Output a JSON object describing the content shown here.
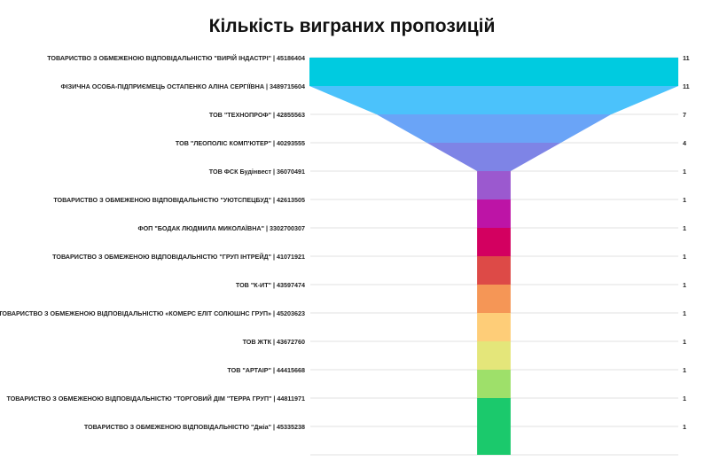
{
  "chart_data": {
    "type": "funnel",
    "title": "Кількість виграних пропозицій",
    "categories": [
      "ТОВАРИСТВО З ОБМЕЖЕНОЮ ВІДПОВІДАЛЬНІСТЮ \"ВИРІЙ ІНДАСТРІ\" | 45186404",
      "ФІЗИЧНА ОСОБА-ПІДПРИЄМЕЦЬ ОСТАПЕНКО АЛІНА СЕРГІЇВНА | 3489715604",
      "ТОВ \"ТЕХНОПРОФ\" | 42855563",
      "ТОВ \"ЛЕОПОЛІС КОМП'ЮТЕР\" | 40293555",
      "ТОВ ФСК Будінвест | 36070491",
      "ТОВАРИСТВО З ОБМЕЖЕНОЮ ВІДПОВІДАЛЬНІСТЮ \"УЮТСПЕЦБУД\" | 42613505",
      "ФОП \"БОДАК ЛЮДМИЛА МИКОЛАЇВНА\" | 3302700307",
      "ТОВАРИСТВО З ОБМЕЖЕНОЮ ВІДПОВІДАЛЬНІСТЮ \"ГРУП ІНТРЕЙД\" | 41071921",
      "ТОВ \"К-ИТ\" | 43597474",
      "ТОВАРИСТВО З ОБМЕЖЕНОЮ ВІДПОВІДАЛЬНІСТЮ «КОМЕРС ЕЛІТ СОЛЮШНС ГРУП» | 45203623",
      "ТОВ ЖТК | 43672760",
      "ТОВ \"АРТАІР\" | 44415668",
      "ТОВАРИСТВО З ОБМЕЖЕНОЮ ВІДПОВІДАЛЬНІСТЮ \"ТОРГОВИЙ ДІМ \"ТЕРРА ГРУП\" | 44811971",
      "ТОВАРИСТВО З ОБМЕЖЕНОЮ ВІДПОВІДАЛЬНІСТЮ \"Джіа\" | 45335238"
    ],
    "values": [
      11,
      11,
      7,
      4,
      1,
      1,
      1,
      1,
      1,
      1,
      1,
      1,
      1,
      1
    ],
    "colors": [
      "#00cbe0",
      "#4bc2fb",
      "#6aa4f7",
      "#7e84e6",
      "#9b59cf",
      "#bd14a6",
      "#d30060",
      "#dd4a47",
      "#f59656",
      "#fecd78",
      "#e4e67a",
      "#9ee06a",
      "#1bc96c",
      "#1bc96c"
    ],
    "grid": true
  }
}
